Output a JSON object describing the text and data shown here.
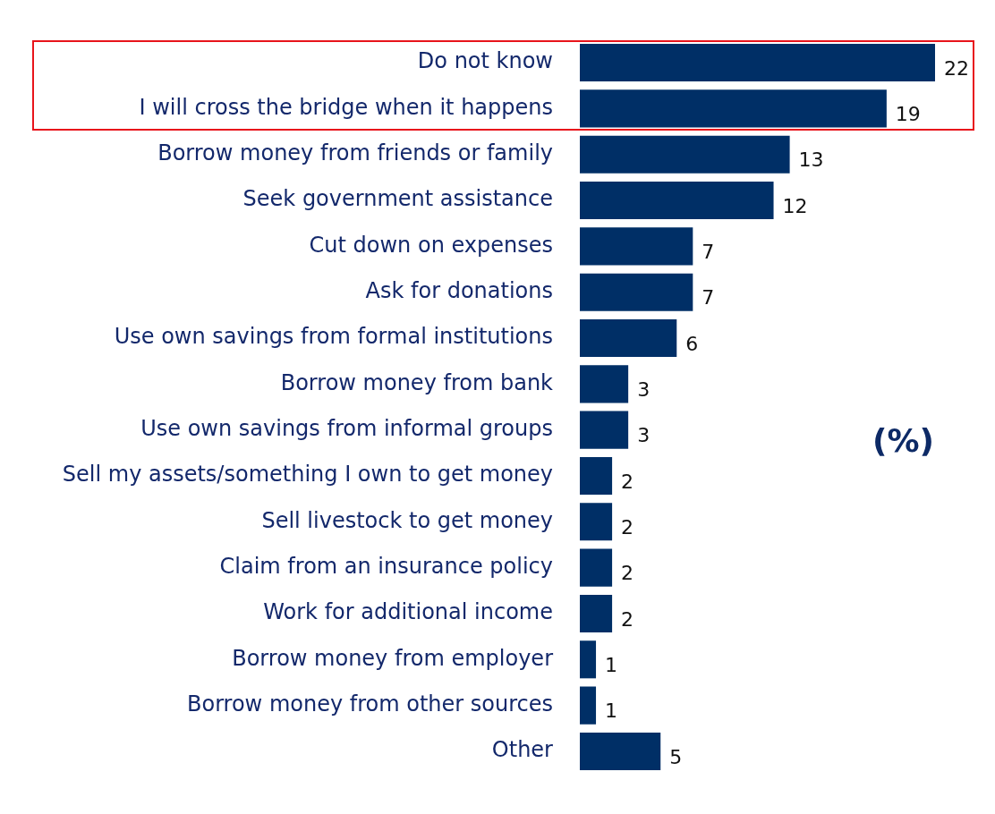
{
  "chart_data": {
    "type": "bar",
    "orientation": "horizontal",
    "data_labels": true,
    "legend": false,
    "grid": false,
    "categories": [
      "Do not know",
      "I will cross the bridge when it happens",
      "Borrow money from friends or family",
      "Seek government assistance",
      "Cut down on expenses",
      "Ask for donations",
      "Use own savings from formal institutions",
      "Borrow money from bank",
      "Use own savings from informal groups",
      "Sell my assets/something I own to get money",
      "Sell livestock to get money",
      "Claim from an insurance policy",
      "Work for additional income",
      "Borrow money from employer",
      "Borrow money from other sources",
      "Other"
    ],
    "values": [
      22,
      19,
      13,
      12,
      7,
      7,
      6,
      3,
      3,
      2,
      2,
      2,
      2,
      1,
      1,
      5
    ],
    "color": "#002f66",
    "annotations": [
      "(%)"
    ]
  }
}
